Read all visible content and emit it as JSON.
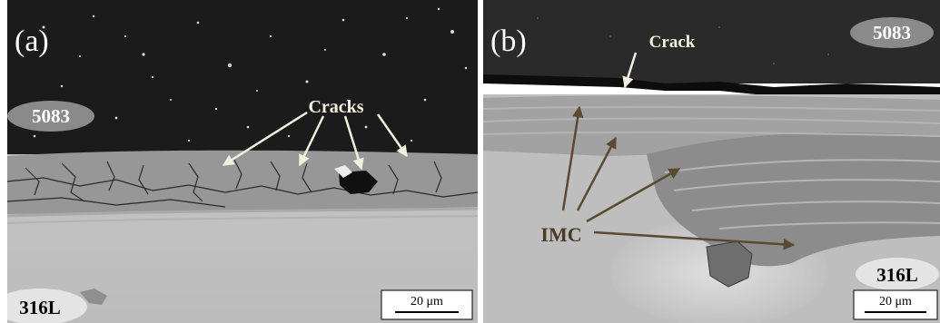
{
  "panels": [
    {
      "letter": "(a)",
      "top_material": "5083",
      "bottom_material": "316L",
      "annotation": "Cracks",
      "scale_bar": "20 μm"
    },
    {
      "letter": "(b)",
      "top_material": "5083",
      "bottom_material": "316L",
      "annotation_top": "Crack",
      "annotation_bottom": "IMC",
      "scale_bar": "20 μm"
    }
  ],
  "colors": {
    "aluminum": "#1c1c1c",
    "steel": "#bdbdbd",
    "imc": "#8c8c8c",
    "arrow_light": "#f2f0dc",
    "arrow_dark": "#5a4a30"
  }
}
